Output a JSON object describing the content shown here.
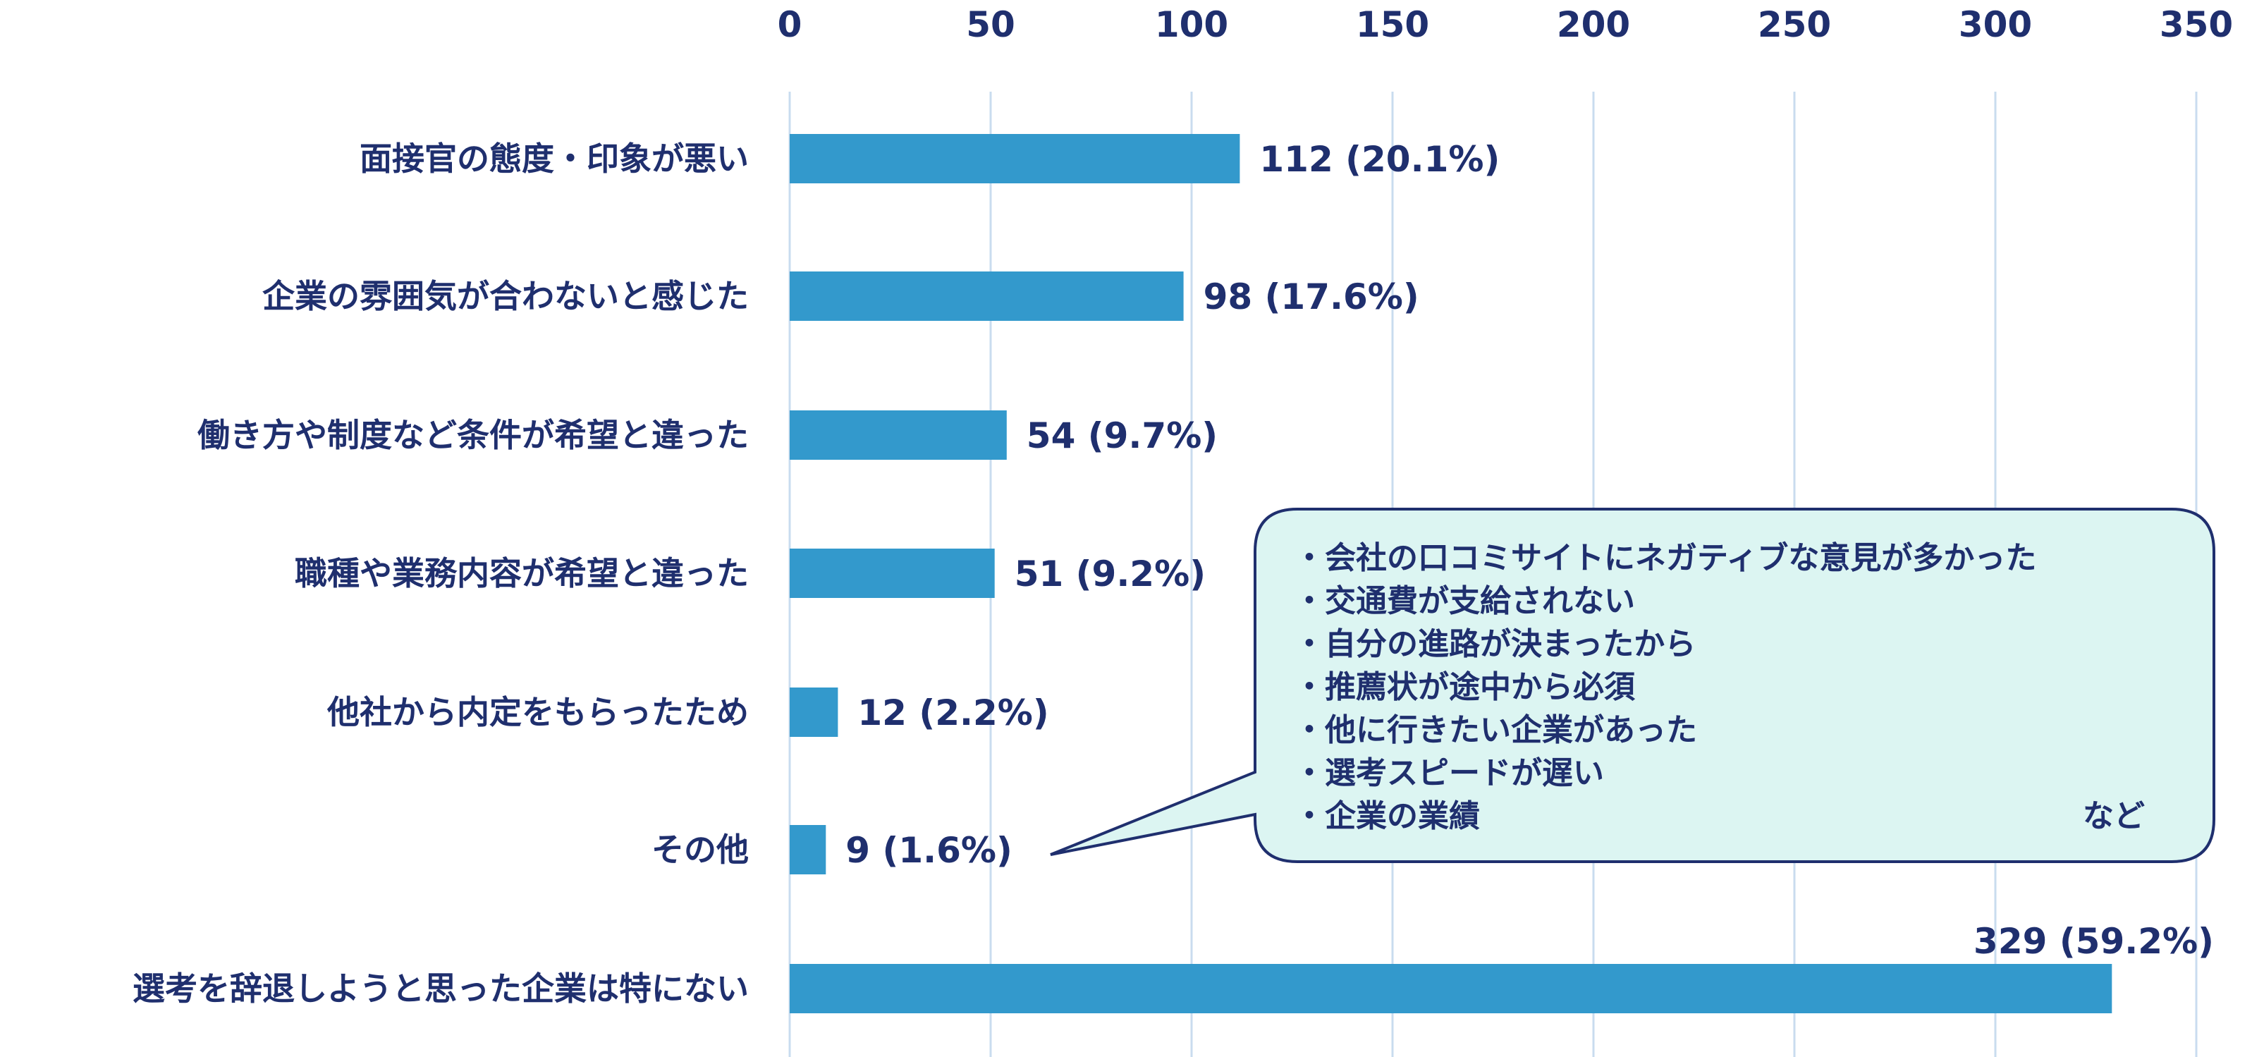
{
  "chart_data": {
    "type": "bar",
    "orientation": "horizontal",
    "x_ticks": [
      0,
      50,
      100,
      150,
      200,
      250,
      300,
      350
    ],
    "xlim": [
      0,
      350
    ],
    "grid": true,
    "tick_position": "top",
    "categories": [
      "面接官の態度・印象が悪い",
      "企業の雰囲気が合わないと感じた",
      "働き方や制度など条件が希望と違った",
      "職種や業務内容が希望と違った",
      "他社から内定をもらったため",
      "その他",
      "選考を辞退しようと思った企業は特にない"
    ],
    "values": [
      112,
      98,
      54,
      51,
      12,
      9,
      329
    ],
    "data_labels": [
      "112 (20.1%)",
      "98 (17.6%)",
      "54 (9.7%)",
      "51 (9.2%)",
      "12 (2.2%)",
      "9 (1.6%)",
      "329 (59.2%)"
    ],
    "bar_color": "#3399cc",
    "text_color": "#1f2f6e",
    "callout": {
      "points_to": "その他",
      "items": [
        "・会社の口コミサイトにネガティブな意見が多かった",
        "・交通費が支給されない",
        "・自分の進路が決まったから",
        "・推薦状が途中から必須",
        "・他に行きたい企業があった",
        "・選考スピードが遅い",
        "・企業の業績"
      ],
      "suffix": "など",
      "fill_color": "#dcf5f2"
    }
  }
}
